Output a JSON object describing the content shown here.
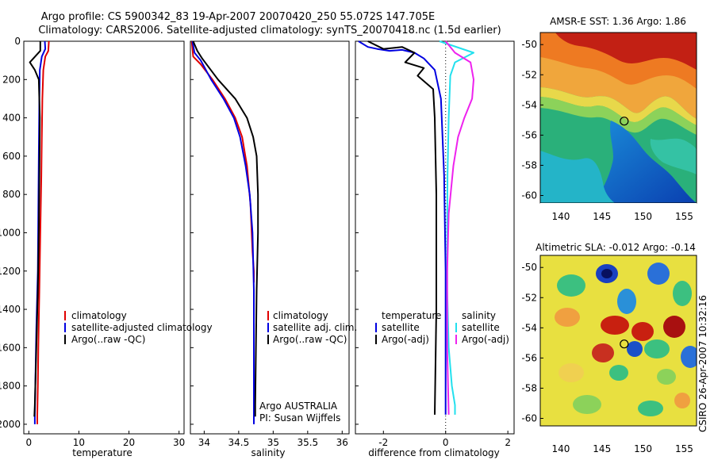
{
  "title": {
    "line1": "Argo profile: CS 5900342_83 19-Apr-2007 20070420_250 55.072S 147.705E",
    "line2": "Climatology: CARS2006. Satellite-adjusted climatology: synTS_20070418.nc (1.5d earlier)"
  },
  "credit": "CSIRO 26-Apr-2007 10:32:16",
  "colors": {
    "red": "#e00000",
    "blue": "#0000e0",
    "black": "#000000",
    "cyan": "#22e0ee",
    "magenta": "#ee22ee"
  },
  "chart_data": [
    {
      "type": "line",
      "name": "temperature-profile",
      "xlabel": "temperature",
      "xlim": [
        -1,
        31
      ],
      "ylim": [
        0,
        2050
      ],
      "y_reversed": true,
      "xticks": [
        0,
        10,
        20,
        30
      ],
      "yticks": [
        0,
        200,
        400,
        600,
        800,
        1000,
        1200,
        1400,
        1600,
        1800,
        2000
      ],
      "series": [
        {
          "name": "climatology",
          "color": "red",
          "x": [
            4.0,
            3.9,
            3.3,
            2.9,
            2.7,
            2.6,
            2.5,
            2.3,
            2.1,
            1.9,
            1.8,
            1.7,
            1.7
          ],
          "y": [
            0,
            50,
            80,
            150,
            300,
            500,
            700,
            1000,
            1300,
            1600,
            1800,
            1950,
            2000
          ]
        },
        {
          "name": "satellite-adjusted climatology",
          "color": "blue",
          "x": [
            3.2,
            3.3,
            2.6,
            2.2,
            2.1,
            2.0,
            1.9,
            1.8,
            1.5,
            1.3,
            1.2,
            1.2
          ],
          "y": [
            0,
            40,
            80,
            150,
            300,
            600,
            900,
            1200,
            1500,
            1800,
            1950,
            2000
          ]
        },
        {
          "name": "Argo(..raw -QC)",
          "color": "black",
          "x": [
            2.3,
            2.3,
            0.2,
            1.2,
            2.0,
            2.2,
            2.1,
            2.0,
            1.8,
            1.5,
            1.2,
            1.1
          ],
          "y": [
            0,
            50,
            110,
            150,
            200,
            400,
            700,
            1000,
            1300,
            1600,
            1900,
            1960
          ]
        }
      ],
      "legend": [
        "climatology",
        "satellite-adjusted climatology",
        "Argo(..raw -QC)"
      ]
    },
    {
      "type": "line",
      "name": "salinity-profile",
      "xlabel": "salinity",
      "xlim": [
        33.8,
        36.1
      ],
      "ylim": [
        0,
        2050
      ],
      "y_reversed": true,
      "xticks": [
        34,
        34.5,
        35,
        35.5,
        36
      ],
      "xticklabels": [
        "34",
        "34.5",
        "35",
        "35.5",
        "36"
      ],
      "series": [
        {
          "name": "climatology",
          "color": "red",
          "x": [
            33.82,
            33.84,
            33.95,
            34.12,
            34.3,
            34.45,
            34.55,
            34.62,
            34.67,
            34.7,
            34.72,
            34.72
          ],
          "y": [
            0,
            80,
            120,
            200,
            300,
            400,
            500,
            650,
            850,
            1100,
            1200,
            1260
          ]
        },
        {
          "name": "satellite adj. clim.",
          "color": "blue",
          "x": [
            33.83,
            33.86,
            33.95,
            34.1,
            34.28,
            34.43,
            34.52,
            34.6,
            34.66,
            34.7,
            34.72,
            34.72,
            34.72
          ],
          "y": [
            0,
            60,
            100,
            200,
            300,
            400,
            500,
            650,
            800,
            1000,
            1300,
            1700,
            2000
          ]
        },
        {
          "name": "Argo(..raw -QC)",
          "color": "black",
          "x": [
            33.84,
            33.9,
            33.97,
            34.2,
            34.45,
            34.62,
            34.71,
            34.76,
            34.78,
            34.78,
            34.76,
            34.75,
            34.74,
            34.74
          ],
          "y": [
            0,
            50,
            90,
            200,
            300,
            400,
            500,
            600,
            800,
            1000,
            1300,
            1600,
            1900,
            1960
          ]
        }
      ],
      "legend": [
        "climatology",
        "satellite adj. clim.",
        "Argo(..raw -QC)"
      ],
      "annotation": [
        "Argo AUSTRALIA",
        "PI: Susan Wijffels"
      ]
    },
    {
      "type": "line",
      "name": "difference-profile",
      "xlabel": "difference from climatology",
      "xlim": [
        -2.9,
        2.2
      ],
      "ylim": [
        0,
        2050
      ],
      "y_reversed": true,
      "xticks": [
        -2,
        0,
        2
      ],
      "zero_line": "dotted",
      "series": [
        {
          "name": "temperature satellite",
          "color": "blue",
          "x": [
            -2.8,
            -2.5,
            -2.2,
            -1.8,
            -1.4,
            -1.0,
            -0.7,
            -0.35,
            -0.15,
            -0.05,
            0.0,
            0.0
          ],
          "y": [
            0,
            30,
            40,
            50,
            45,
            60,
            90,
            150,
            300,
            700,
            1200,
            1950
          ]
        },
        {
          "name": "temperature Argo(-adj)",
          "color": "black",
          "x": [
            -2.5,
            -2.0,
            -1.4,
            -1.0,
            -1.3,
            -0.7,
            -0.9,
            -0.4,
            -0.35,
            -0.3,
            -0.3,
            -0.35
          ],
          "y": [
            0,
            40,
            30,
            60,
            110,
            140,
            180,
            250,
            400,
            800,
            1400,
            1950
          ]
        },
        {
          "name": "salinity satellite",
          "color": "cyan",
          "x": [
            -0.2,
            0.9,
            0.3,
            0.15,
            0.1,
            0.06,
            0.05,
            0.05,
            0.1,
            0.2,
            0.3,
            0.3
          ],
          "y": [
            0,
            60,
            110,
            180,
            400,
            700,
            1000,
            1300,
            1600,
            1800,
            1900,
            1950
          ]
        },
        {
          "name": "salinity Argo(-adj)",
          "color": "magenta",
          "x": [
            0.0,
            0.3,
            0.8,
            0.9,
            0.85,
            0.6,
            0.4,
            0.25,
            0.1,
            0.05,
            0.05,
            0.1
          ],
          "y": [
            0,
            60,
            110,
            200,
            300,
            400,
            500,
            650,
            900,
            1200,
            1600,
            1950
          ]
        }
      ],
      "legend_headers": [
        "temperature",
        "salinity"
      ],
      "legend_left": [
        "satellite",
        "Argo(-adj)"
      ],
      "legend_right": [
        "satellite",
        "Argo(-adj)"
      ]
    },
    {
      "type": "heatmap",
      "name": "amsre-sst-map",
      "title": "AMSR-E SST: 1.36 Argo: 1.86",
      "xlim": [
        137.5,
        156.5
      ],
      "ylim": [
        -60.5,
        -49.2
      ],
      "xticks": [
        140,
        145,
        150,
        155
      ],
      "yticks": [
        -50,
        -52,
        -54,
        -56,
        -58,
        -60
      ],
      "marker": {
        "lon": 147.705,
        "lat": -55.072
      }
    },
    {
      "type": "heatmap",
      "name": "altimetric-sla-map",
      "title": "Altimetric SLA: -0.012 Argo: -0.14",
      "xlim": [
        137.5,
        156.5
      ],
      "ylim": [
        -60.5,
        -49.2
      ],
      "xticks": [
        140,
        145,
        150,
        155
      ],
      "yticks": [
        -50,
        -52,
        -54,
        -56,
        -58,
        -60
      ],
      "marker": {
        "lon": 147.705,
        "lat": -55.072
      }
    }
  ]
}
